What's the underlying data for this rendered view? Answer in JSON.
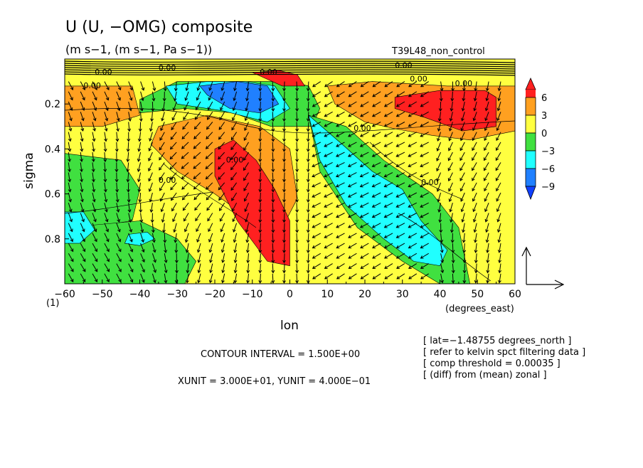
{
  "chart_data": {
    "type": "heatmap",
    "title": "U (U, −OMG) composite",
    "subtitle": "(m s−1, (m s−1, Pa s−1))",
    "run_label": "T39L48_non_control",
    "xlabel": "lon",
    "x_units": "(degrees_east)",
    "ylabel": "sigma",
    "y_corner_label": "(1)",
    "xlim": [
      -60,
      60
    ],
    "ylim": [
      0.0,
      1.0
    ],
    "x_ticks": [
      "−60",
      "−50",
      "−40",
      "−30",
      "−20",
      "−10",
      "0",
      "10",
      "20",
      "30",
      "40",
      "50",
      "60"
    ],
    "x_tick_values": [
      -60,
      -50,
      -40,
      -30,
      -20,
      -10,
      0,
      10,
      20,
      30,
      40,
      50,
      60
    ],
    "y_ticks": [
      "0.2",
      "0.4",
      "0.6",
      "0.8"
    ],
    "y_tick_values": [
      0.2,
      0.4,
      0.6,
      0.8
    ],
    "colorbar": {
      "labels": [
        "6",
        "3",
        "0",
        "−3",
        "−6",
        "−9"
      ],
      "levels": [
        6,
        3,
        0,
        -3,
        -6,
        -9
      ],
      "colors": [
        "#ff2020",
        "#ffa020",
        "#ffff40",
        "#40e040",
        "#20ffff",
        "#2080ff",
        "#1040ff"
      ]
    },
    "contour_labels": [
      "0.00",
      "0.00",
      "0.00",
      "0.00",
      "0.00",
      "0.00",
      "0.00",
      "0.00",
      "0.00",
      "0.00",
      "0.00"
    ],
    "regions": [
      {
        "level": 3,
        "x": [
          -60,
          -42,
          -40,
          -50,
          -60
        ],
        "y": [
          0.12,
          0.12,
          0.25,
          0.3,
          0.3
        ]
      },
      {
        "level": 3,
        "x": [
          -35,
          -22,
          -8,
          0,
          2,
          -2,
          -10,
          -20,
          -30,
          -37
        ],
        "y": [
          0.3,
          0.25,
          0.3,
          0.4,
          0.62,
          0.75,
          0.72,
          0.6,
          0.5,
          0.38
        ]
      },
      {
        "level": 6,
        "x": [
          -20,
          -15,
          -9,
          -4,
          0,
          0,
          -6,
          -14,
          -20
        ],
        "y": [
          0.4,
          0.36,
          0.45,
          0.58,
          0.72,
          0.92,
          0.9,
          0.72,
          0.52
        ]
      },
      {
        "level": 3,
        "x": [
          10,
          22,
          42,
          60,
          60,
          48,
          38,
          28,
          20,
          12
        ],
        "y": [
          0.12,
          0.1,
          0.12,
          0.12,
          0.32,
          0.36,
          0.34,
          0.31,
          0.28,
          0.2
        ]
      },
      {
        "level": 6,
        "x": [
          28,
          40,
          52,
          55,
          55,
          46,
          36,
          28
        ],
        "y": [
          0.17,
          0.14,
          0.14,
          0.17,
          0.3,
          0.32,
          0.26,
          0.22
        ]
      },
      {
        "level": -3,
        "x": [
          -40,
          -30,
          -10,
          0,
          5,
          8,
          6,
          -5,
          -15,
          -28,
          -40
        ],
        "y": [
          0.18,
          0.1,
          0.1,
          0.1,
          0.12,
          0.22,
          0.3,
          0.3,
          0.24,
          0.22,
          0.24
        ]
      },
      {
        "level": -3,
        "x": [
          5,
          15,
          25,
          38,
          45,
          48,
          40,
          30,
          18,
          8
        ],
        "y": [
          0.25,
          0.3,
          0.45,
          0.6,
          0.75,
          1.0,
          1.0,
          0.9,
          0.75,
          0.5
        ]
      },
      {
        "level": -3,
        "x": [
          -60,
          -45,
          -40,
          -42,
          -55,
          -60
        ],
        "y": [
          0.42,
          0.45,
          0.58,
          0.72,
          0.75,
          0.7
        ]
      },
      {
        "level": -3,
        "x": [
          -60,
          -40,
          -30,
          -25,
          -28,
          -40,
          -60
        ],
        "y": [
          0.75,
          0.72,
          0.8,
          0.9,
          1.0,
          1.0,
          1.0
        ]
      },
      {
        "level": -6,
        "x": [
          -33,
          -22,
          -12,
          -4,
          0,
          -6,
          -18,
          -30
        ],
        "y": [
          0.12,
          0.1,
          0.1,
          0.12,
          0.22,
          0.28,
          0.23,
          0.2
        ]
      },
      {
        "level": -6,
        "x": [
          5,
          14,
          22,
          30,
          35,
          42,
          40,
          33,
          25,
          15,
          8
        ],
        "y": [
          0.25,
          0.38,
          0.5,
          0.58,
          0.72,
          0.85,
          0.92,
          0.9,
          0.8,
          0.65,
          0.45
        ]
      },
      {
        "level": -6,
        "x": [
          -60,
          -55,
          -52,
          -56,
          -60
        ],
        "y": [
          0.68,
          0.68,
          0.76,
          0.82,
          0.82
        ]
      },
      {
        "level": -6,
        "x": [
          -43,
          -38,
          -36,
          -40,
          -44
        ],
        "y": [
          0.78,
          0.77,
          0.8,
          0.83,
          0.82
        ]
      },
      {
        "level": -9,
        "x": [
          -24,
          -14,
          -6,
          -3,
          -8,
          -16,
          -22
        ],
        "y": [
          0.12,
          0.1,
          0.12,
          0.2,
          0.24,
          0.22,
          0.16
        ]
      },
      {
        "level": 6,
        "x": [
          -10,
          -3,
          2,
          4,
          -2
        ],
        "y": [
          0.06,
          0.05,
          0.07,
          0.12,
          0.12
        ]
      }
    ],
    "notes": [
      "[ lat=−1.48755 degrees_north ]",
      "[ refer to kelvin spct filtering data ]",
      "[ comp threshold = 0.00035 ]",
      "[ (diff) from (mean) zonal ]"
    ],
    "contour_interval": "CONTOUR INTERVAL = 1.500E+00",
    "units_line": "XUNIT = 3.000E+01, YUNIT = 4.000E−01"
  }
}
